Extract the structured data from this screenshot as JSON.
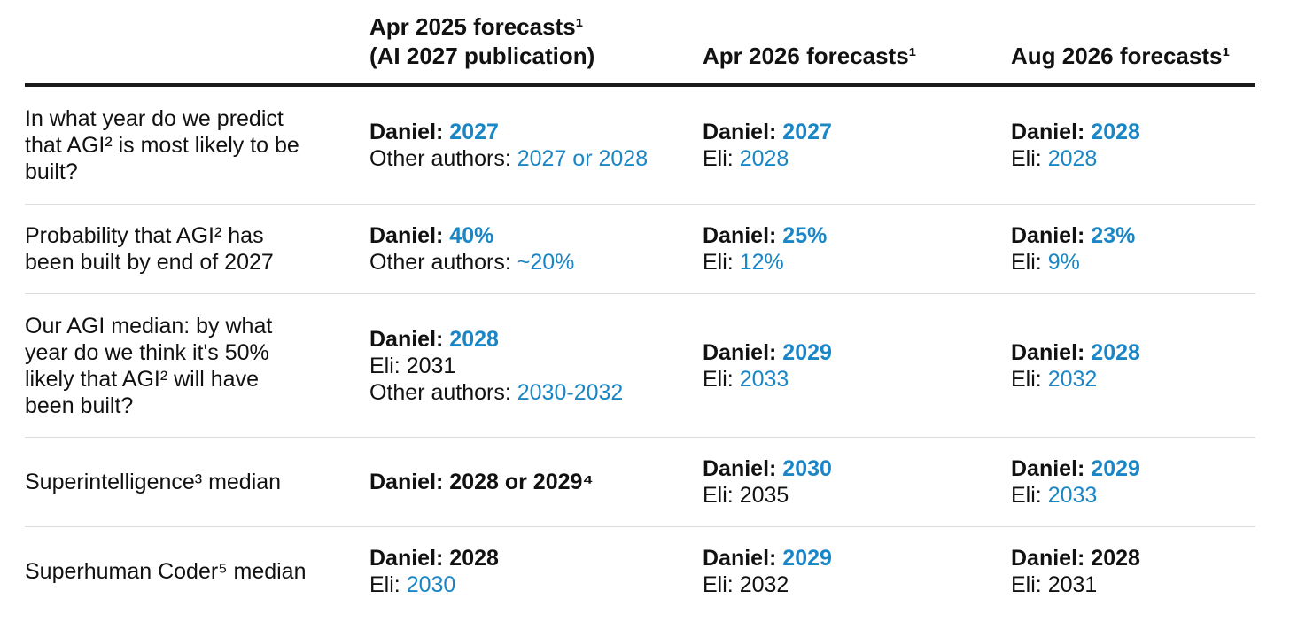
{
  "colors": {
    "accent_blue": "#1b86c5",
    "text": "#111111",
    "header_rule": "#1a1a1a",
    "row_rule": "#dcdcdc"
  },
  "columns": [
    {
      "lines": [
        "Apr 2025 forecasts¹",
        "(AI 2027 publication)"
      ]
    },
    {
      "lines": [
        "Apr 2026 forecasts¹"
      ]
    },
    {
      "lines": [
        "Aug 2026 forecasts¹"
      ]
    }
  ],
  "rows": [
    {
      "question": "In what year do we predict that AGI² is most likely to be built?",
      "cells": [
        [
          {
            "label": "Daniel: ",
            "value": "2027",
            "bold": true,
            "blue": true
          },
          {
            "label": "Other authors: ",
            "value": "2027 or 2028",
            "bold": false,
            "blue": true
          }
        ],
        [
          {
            "label": "Daniel: ",
            "value": "2027",
            "bold": true,
            "blue": true
          },
          {
            "label": "Eli: ",
            "value": "2028",
            "bold": false,
            "blue": true
          }
        ],
        [
          {
            "label": "Daniel: ",
            "value": "2028",
            "bold": true,
            "blue": true
          },
          {
            "label": "Eli: ",
            "value": "2028",
            "bold": false,
            "blue": true
          }
        ]
      ]
    },
    {
      "question": "Probability that AGI² has been built by end of 2027",
      "cells": [
        [
          {
            "label": "Daniel: ",
            "value": "40%",
            "bold": true,
            "blue": true
          },
          {
            "label": "Other authors: ",
            "value": "~20%",
            "bold": false,
            "blue": true
          }
        ],
        [
          {
            "label": "Daniel: ",
            "value": "25%",
            "bold": true,
            "blue": true
          },
          {
            "label": "Eli: ",
            "value": "12%",
            "bold": false,
            "blue": true
          }
        ],
        [
          {
            "label": "Daniel: ",
            "value": "23%",
            "bold": true,
            "blue": true
          },
          {
            "label": "Eli: ",
            "value": "9%",
            "bold": false,
            "blue": true
          }
        ]
      ]
    },
    {
      "question": "Our AGI median: by what year do we think it's 50% likely that AGI² will have been built?",
      "cells": [
        [
          {
            "label": "Daniel: ",
            "value": "2028",
            "bold": true,
            "blue": true
          },
          {
            "label": "Eli: ",
            "value": "2031",
            "bold": false,
            "blue": false
          },
          {
            "label": "Other authors: ",
            "value": "2030-2032",
            "bold": false,
            "blue": true
          }
        ],
        [
          {
            "label": "Daniel: ",
            "value": "2029",
            "bold": true,
            "blue": true
          },
          {
            "label": "Eli: ",
            "value": "2033",
            "bold": false,
            "blue": true
          }
        ],
        [
          {
            "label": "Daniel: ",
            "value": "2028",
            "bold": true,
            "blue": true
          },
          {
            "label": "Eli: ",
            "value": "2032",
            "bold": false,
            "blue": true
          }
        ]
      ]
    },
    {
      "question": "Superintelligence³ median",
      "cells": [
        [
          {
            "label": "Daniel: ",
            "value": "2028 or 2029⁴",
            "bold": true,
            "blue": false
          }
        ],
        [
          {
            "label": "Daniel: ",
            "value": "2030",
            "bold": true,
            "blue": true
          },
          {
            "label": "Eli: ",
            "value": "2035",
            "bold": false,
            "blue": false
          }
        ],
        [
          {
            "label": "Daniel: ",
            "value": "2029",
            "bold": true,
            "blue": true
          },
          {
            "label": "Eli: ",
            "value": "2033",
            "bold": false,
            "blue": true
          }
        ]
      ]
    },
    {
      "question": "Superhuman Coder⁵ median",
      "cells": [
        [
          {
            "label": "Daniel: ",
            "value": "2028",
            "bold": true,
            "blue": false
          },
          {
            "label": "Eli: ",
            "value": "2030",
            "bold": false,
            "blue": true
          }
        ],
        [
          {
            "label": "Daniel: ",
            "value": "2029",
            "bold": true,
            "blue": true
          },
          {
            "label": "Eli: ",
            "value": "2032",
            "bold": false,
            "blue": false
          }
        ],
        [
          {
            "label": "Daniel: ",
            "value": "2028",
            "bold": true,
            "blue": false
          },
          {
            "label": "Eli: ",
            "value": "2031",
            "bold": false,
            "blue": false
          }
        ]
      ]
    }
  ]
}
